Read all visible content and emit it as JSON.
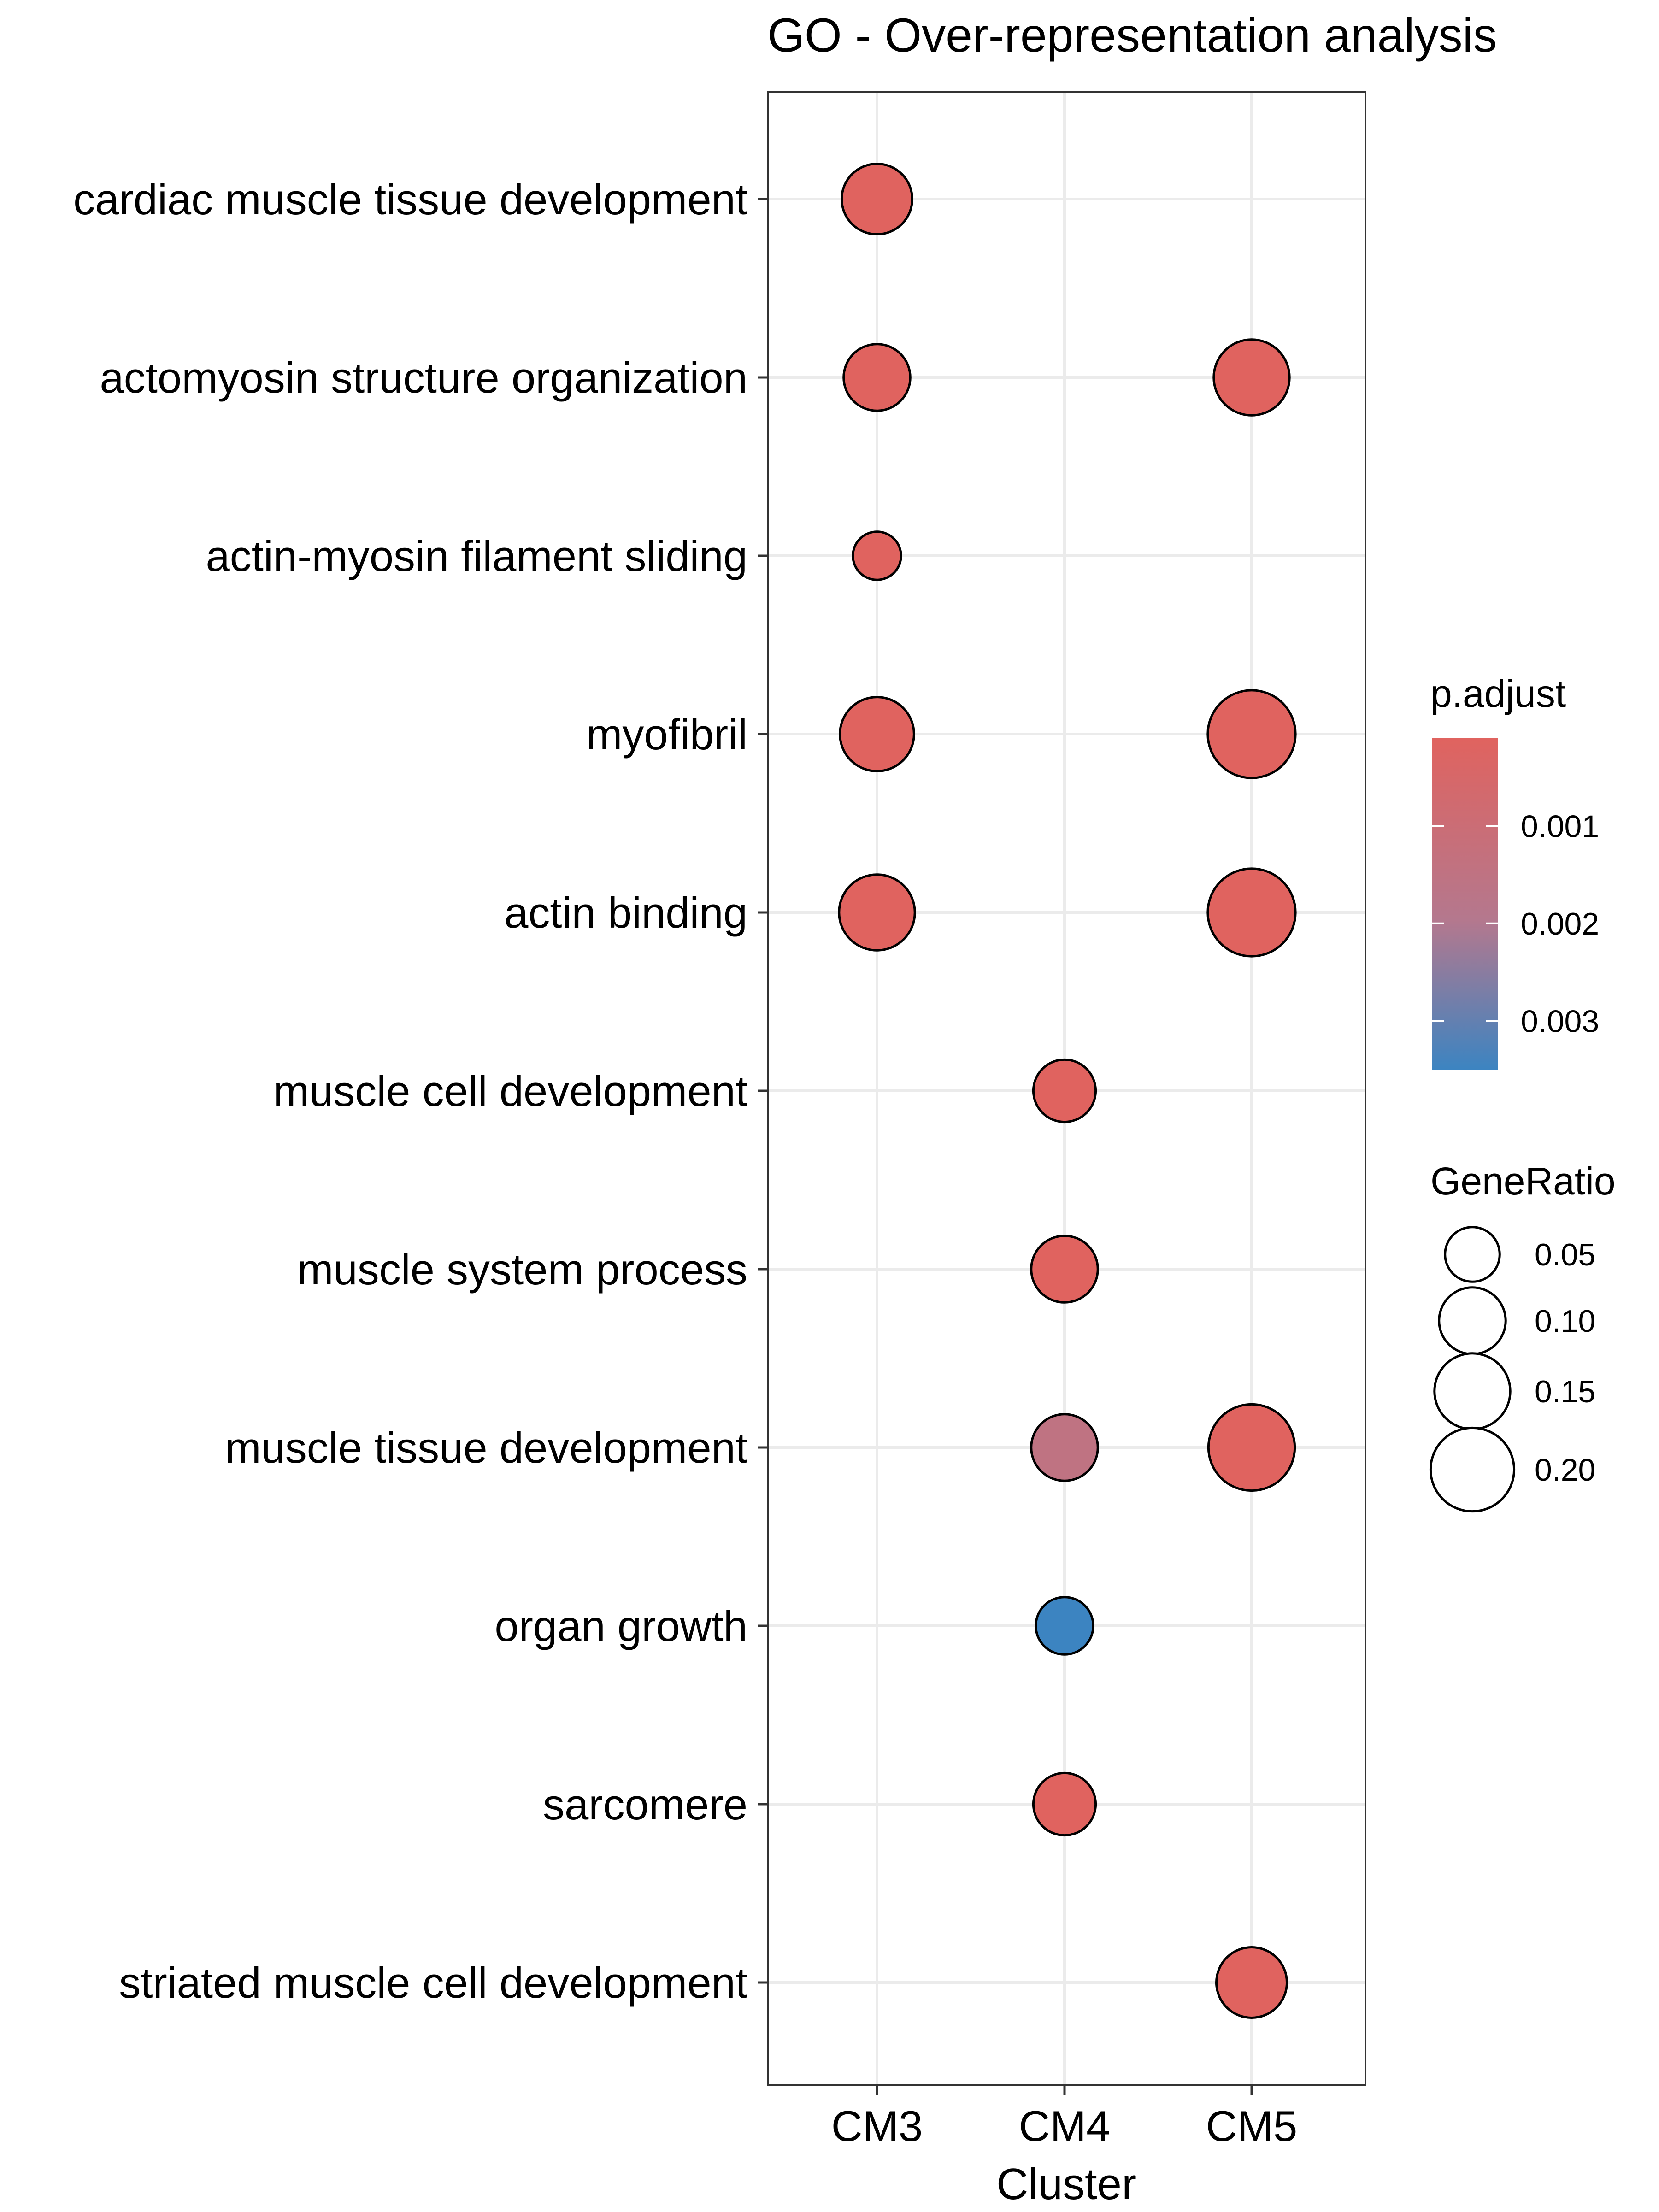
{
  "chart_data": {
    "type": "scatter",
    "title": "GO - Over-representation analysis",
    "xlabel": "Cluster",
    "ylabel": "",
    "categories_x": [
      "CM3",
      "CM4",
      "CM5"
    ],
    "categories_y": [
      "cardiac muscle tissue development",
      "actomyosin structure organization",
      "actin-myosin filament sliding",
      "myofibril",
      "actin binding",
      "muscle cell development",
      "muscle system process",
      "muscle tissue development",
      "organ growth",
      "sarcomere",
      "striated muscle cell development"
    ],
    "grid": true,
    "points": [
      {
        "x": "CM3",
        "y": "cardiac muscle tissue development",
        "gene_ratio": 0.12,
        "p_adjust": 0.0001
      },
      {
        "x": "CM3",
        "y": "actomyosin structure organization",
        "gene_ratio": 0.1,
        "p_adjust": 0.0001
      },
      {
        "x": "CM5",
        "y": "actomyosin structure organization",
        "gene_ratio": 0.15,
        "p_adjust": 0.0001
      },
      {
        "x": "CM3",
        "y": "actin-myosin filament sliding",
        "gene_ratio": 0.03,
        "p_adjust": 0.0001
      },
      {
        "x": "CM3",
        "y": "myofibril",
        "gene_ratio": 0.14,
        "p_adjust": 0.0001
      },
      {
        "x": "CM5",
        "y": "myofibril",
        "gene_ratio": 0.23,
        "p_adjust": 0.0001
      },
      {
        "x": "CM3",
        "y": "actin binding",
        "gene_ratio": 0.15,
        "p_adjust": 0.0001
      },
      {
        "x": "CM5",
        "y": "actin binding",
        "gene_ratio": 0.23,
        "p_adjust": 0.0001
      },
      {
        "x": "CM4",
        "y": "muscle cell development",
        "gene_ratio": 0.08,
        "p_adjust": 0.0001
      },
      {
        "x": "CM4",
        "y": "muscle system process",
        "gene_ratio": 0.1,
        "p_adjust": 0.0001
      },
      {
        "x": "CM4",
        "y": "muscle tissue development",
        "gene_ratio": 0.1,
        "p_adjust": 0.0015
      },
      {
        "x": "CM5",
        "y": "muscle tissue development",
        "gene_ratio": 0.22,
        "p_adjust": 0.0001
      },
      {
        "x": "CM4",
        "y": "organ growth",
        "gene_ratio": 0.06,
        "p_adjust": 0.0035
      },
      {
        "x": "CM4",
        "y": "sarcomere",
        "gene_ratio": 0.08,
        "p_adjust": 0.0001
      },
      {
        "x": "CM5",
        "y": "striated muscle cell development",
        "gene_ratio": 0.12,
        "p_adjust": 0.0001
      }
    ],
    "color_legend": {
      "title": "p.adjust",
      "ticks": [
        {
          "value": 0.001,
          "label": "0.001"
        },
        {
          "value": 0.002,
          "label": "0.002"
        },
        {
          "value": 0.003,
          "label": "0.003"
        }
      ],
      "range": [
        0.0001,
        0.0035
      ],
      "low_color": "#e0635f",
      "high_color": "#3c84c1",
      "placement": "right"
    },
    "size_legend": {
      "title": "GeneRatio",
      "entries": [
        {
          "value": 0.05,
          "label": "0.05"
        },
        {
          "value": 0.1,
          "label": "0.10"
        },
        {
          "value": 0.15,
          "label": "0.15"
        },
        {
          "value": 0.2,
          "label": "0.20"
        }
      ],
      "placement": "right"
    }
  }
}
